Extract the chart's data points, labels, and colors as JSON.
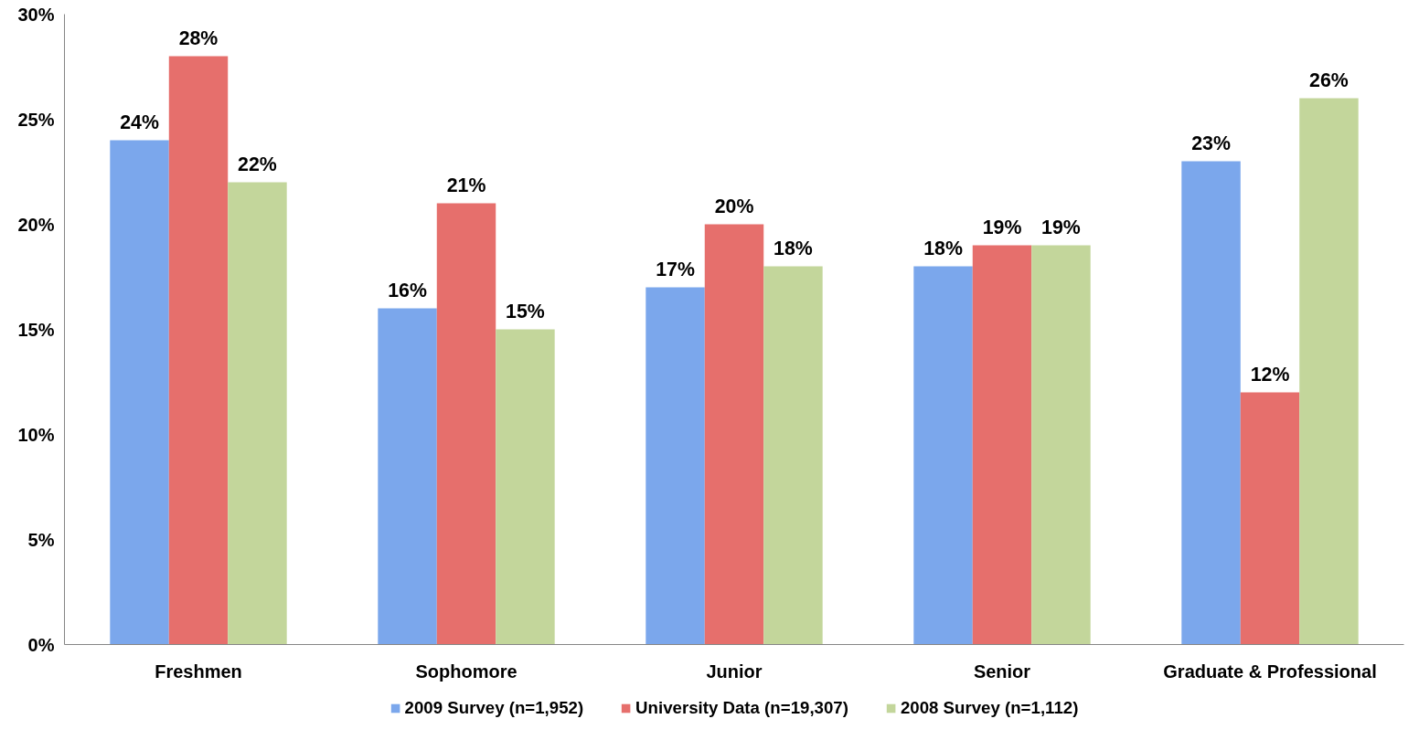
{
  "chart_data": {
    "type": "bar",
    "categories": [
      "Freshmen",
      "Sophomore",
      "Junior",
      "Senior",
      "Graduate & Professional"
    ],
    "series": [
      {
        "name": "2009 Survey (n=1,952)",
        "color": "#7ba7ec",
        "values": [
          24,
          16,
          17,
          18,
          23
        ],
        "value_labels": [
          "24%",
          "16%",
          "17%",
          "18%",
          "23%"
        ]
      },
      {
        "name": "University Data (n=19,307)",
        "color": "#e66f6c",
        "values": [
          28,
          21,
          20,
          19,
          12
        ],
        "value_labels": [
          "28%",
          "21%",
          "20%",
          "19%",
          "12%"
        ]
      },
      {
        "name": "2008 Survey (n=1,112)",
        "color": "#c3d69b",
        "values": [
          22,
          15,
          18,
          19,
          26
        ],
        "value_labels": [
          "22%",
          "15%",
          "18%",
          "19%",
          "26%"
        ]
      }
    ],
    "ylim": [
      0,
      30
    ],
    "yticks": [
      {
        "value": 0,
        "label": "0%"
      },
      {
        "value": 5,
        "label": "5%"
      },
      {
        "value": 10,
        "label": "10%"
      },
      {
        "value": 15,
        "label": "15%"
      },
      {
        "value": 20,
        "label": "20%"
      },
      {
        "value": 25,
        "label": "25%"
      },
      {
        "value": 30,
        "label": "30%"
      }
    ],
    "grid": false,
    "legend": "bottom"
  }
}
